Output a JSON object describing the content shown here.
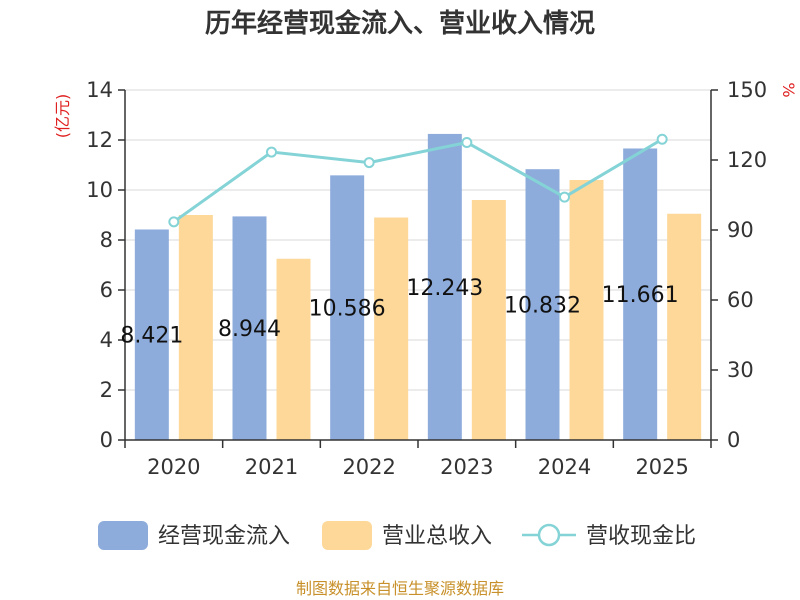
{
  "chart_data": {
    "type": "bar",
    "title": "历年经营现金流入、营业收入情况",
    "categories": [
      "2020",
      "2021",
      "2022",
      "2023",
      "2024",
      "2025"
    ],
    "y_left_label": "(亿元)",
    "y_right_label": "%",
    "y_left_lim": [
      0,
      14
    ],
    "y_left_ticks": [
      0,
      2,
      4,
      6,
      8,
      10,
      12,
      14
    ],
    "y_right_lim": [
      0,
      150
    ],
    "y_right_ticks": [
      0,
      30,
      60,
      90,
      120,
      150
    ],
    "series": [
      {
        "name": "经营现金流入",
        "kind": "bar",
        "axis": "left",
        "color": "#8eacdb",
        "values": [
          8.421,
          8.944,
          10.586,
          12.243,
          10.832,
          11.661
        ],
        "labels": [
          "8.421",
          "8.944",
          "10.586",
          "12.243",
          "10.832",
          "11.661"
        ]
      },
      {
        "name": "营业总收入",
        "kind": "bar",
        "axis": "left",
        "color": "#fdd899",
        "values": [
          9.0,
          7.25,
          8.9,
          9.6,
          10.4,
          9.05
        ]
      },
      {
        "name": "营收现金比",
        "kind": "line",
        "axis": "right",
        "color": "#84d3d6",
        "values": [
          93.5,
          123.4,
          118.9,
          127.5,
          104.1,
          128.9
        ]
      }
    ],
    "source": "制图数据来自恒生聚源数据库",
    "colors": {
      "axis_label": "#e02020",
      "source": "#c8902a",
      "grid": "#d9d9d9",
      "axis": "#333333"
    }
  }
}
